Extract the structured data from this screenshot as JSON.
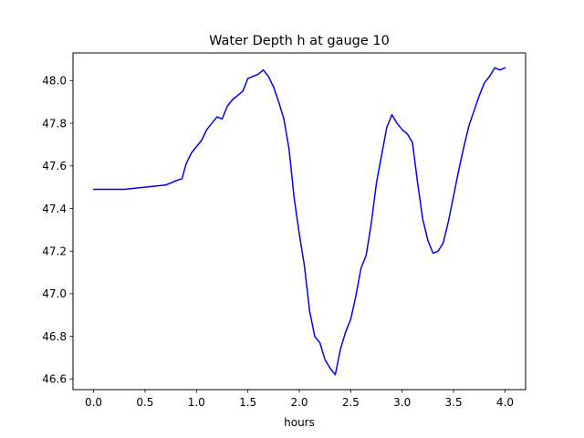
{
  "chart_data": {
    "type": "line",
    "title": "Water Depth h at gauge 10",
    "xlabel": "hours",
    "ylabel": "",
    "xlim": [
      -0.2,
      4.2
    ],
    "ylim": [
      46.55,
      48.13
    ],
    "xticks": [
      0.0,
      0.5,
      1.0,
      1.5,
      2.0,
      2.5,
      3.0,
      3.5,
      4.0
    ],
    "xtick_labels": [
      "0.0",
      "0.5",
      "1.0",
      "1.5",
      "2.0",
      "2.5",
      "3.0",
      "3.5",
      "4.0"
    ],
    "yticks": [
      46.6,
      46.8,
      47.0,
      47.2,
      47.4,
      47.6,
      47.8,
      48.0
    ],
    "ytick_labels": [
      "46.6",
      "46.8",
      "47.0",
      "47.2",
      "47.4",
      "47.6",
      "47.8",
      "48.0"
    ],
    "grid": false,
    "series": [
      {
        "color": "#0000ff",
        "x": [
          0.0,
          0.3,
          0.5,
          0.7,
          0.8,
          0.86,
          0.9,
          0.95,
          1.0,
          1.05,
          1.1,
          1.15,
          1.2,
          1.25,
          1.3,
          1.35,
          1.4,
          1.45,
          1.5,
          1.55,
          1.6,
          1.65,
          1.7,
          1.75,
          1.8,
          1.85,
          1.9,
          1.95,
          2.0,
          2.05,
          2.1,
          2.15,
          2.2,
          2.25,
          2.3,
          2.35,
          2.4,
          2.45,
          2.5,
          2.55,
          2.6,
          2.65,
          2.7,
          2.75,
          2.8,
          2.85,
          2.9,
          2.95,
          3.0,
          3.05,
          3.1,
          3.15,
          3.2,
          3.25,
          3.3,
          3.35,
          3.4,
          3.45,
          3.5,
          3.55,
          3.6,
          3.65,
          3.7,
          3.75,
          3.8,
          3.85,
          3.9,
          3.95,
          4.0
        ],
        "y": [
          47.49,
          47.49,
          47.5,
          47.51,
          47.53,
          47.54,
          47.61,
          47.66,
          47.69,
          47.72,
          47.77,
          47.8,
          47.83,
          47.82,
          47.88,
          47.91,
          47.93,
          47.95,
          48.01,
          48.02,
          48.03,
          48.05,
          48.02,
          47.97,
          47.9,
          47.82,
          47.68,
          47.45,
          47.28,
          47.13,
          46.92,
          46.8,
          46.77,
          46.69,
          46.65,
          46.62,
          46.74,
          46.82,
          46.88,
          46.99,
          47.12,
          47.18,
          47.33,
          47.52,
          47.65,
          47.78,
          47.84,
          47.8,
          47.77,
          47.75,
          47.71,
          47.52,
          47.35,
          47.25,
          47.19,
          47.2,
          47.24,
          47.34,
          47.46,
          47.58,
          47.69,
          47.79,
          47.86,
          47.93,
          47.99,
          48.02,
          48.06,
          48.05,
          48.06
        ]
      }
    ]
  }
}
